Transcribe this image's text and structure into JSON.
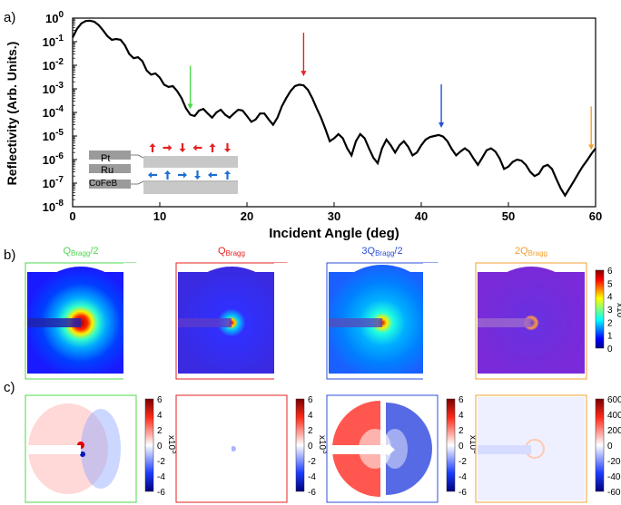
{
  "panel_labels": {
    "a": "a)",
    "b": "b)",
    "c": "c)"
  },
  "colors": {
    "green": "#4cd94c",
    "red": "#e52222",
    "blue": "#2b4fd8",
    "orange": "#f0a030",
    "curve": "#000000"
  },
  "panel_a": {
    "ylabel": "Reflectivity (Arb. Units.)",
    "xlabel": "Incident Angle (deg)",
    "arrows": [
      {
        "color_key": "green",
        "x": 13.5,
        "y": 8e-05
      },
      {
        "color_key": "red",
        "x": 26.5,
        "y": 0.002
      },
      {
        "color_key": "blue",
        "x": 42.3,
        "y": 1.3e-05
      },
      {
        "color_key": "orange",
        "x": 59.5,
        "y": 1.5e-06
      }
    ],
    "inset": {
      "layers": [
        "Pt",
        "Ru",
        "CoFeB"
      ],
      "top_arrows": [
        "up",
        "right",
        "down",
        "left",
        "up",
        "down"
      ],
      "bottom_arrows": [
        "left",
        "up",
        "right",
        "down",
        "left",
        "up"
      ]
    }
  },
  "chart_data": {
    "type": "line",
    "xlabel": "Incident Angle (deg)",
    "ylabel": "Reflectivity (Arb. Units.)",
    "xlim": [
      0,
      60
    ],
    "ylim": [
      1e-08,
      1
    ],
    "yscale": "log",
    "x_ticks": [
      "0",
      "10",
      "20",
      "30",
      "40",
      "50",
      "60"
    ],
    "y_ticks": [
      "10-8",
      "10-7",
      "10-6",
      "10-5",
      "10-4",
      "10-3",
      "10-2",
      "10-1",
      "100"
    ],
    "x": [
      0,
      0.5,
      1,
      1.5,
      2,
      2.5,
      3,
      3.5,
      4,
      4.5,
      5,
      5.5,
      6,
      6.5,
      7,
      7.5,
      8,
      8.5,
      9,
      9.5,
      10,
      10.5,
      11,
      11.5,
      12,
      12.5,
      13,
      13.5,
      14,
      14.5,
      15,
      15.5,
      16,
      16.5,
      17,
      17.5,
      18,
      18.5,
      19,
      19.5,
      20,
      20.5,
      21,
      21.5,
      22,
      22.5,
      23,
      23.5,
      24,
      24.5,
      25,
      25.5,
      26,
      26.5,
      27,
      27.5,
      28,
      28.5,
      29,
      29.5,
      30,
      30.5,
      31,
      31.5,
      32,
      32.5,
      33,
      33.5,
      34,
      34.5,
      35,
      35.5,
      36,
      36.5,
      37,
      37.5,
      38,
      38.5,
      39,
      39.5,
      40,
      40.5,
      41,
      41.5,
      42,
      42.5,
      43,
      43.5,
      44,
      44.5,
      45,
      45.5,
      46,
      46.5,
      47,
      47.5,
      48,
      48.5,
      49,
      49.5,
      50,
      50.5,
      51,
      51.5,
      52,
      52.5,
      53,
      53.5,
      54,
      54.5,
      55,
      55.5,
      56,
      56.5,
      57,
      57.5,
      58,
      58.5,
      59,
      59.5,
      60
    ],
    "y": [
      0.15,
      0.35,
      0.6,
      0.75,
      0.78,
      0.7,
      0.5,
      0.3,
      0.17,
      0.12,
      0.13,
      0.12,
      0.07,
      0.03,
      0.02,
      0.022,
      0.015,
      0.006,
      0.004,
      0.0045,
      0.003,
      0.0015,
      0.0012,
      0.0013,
      0.0008,
      0.0004,
      0.00015,
      8e-05,
      7e-05,
      0.00012,
      0.00014,
      9e-05,
      6e-05,
      0.0001,
      0.00013,
      8e-05,
      6e-05,
      9e-05,
      0.00013,
      0.00012,
      7e-05,
      4e-05,
      5e-05,
      9e-05,
      9e-05,
      5e-05,
      3e-05,
      6e-05,
      0.00018,
      0.0004,
      0.0008,
      0.0013,
      0.0015,
      0.0014,
      0.0009,
      0.0004,
      0.00015,
      6e-05,
      2e-05,
      6e-06,
      8e-06,
      1.2e-05,
      8e-06,
      3e-06,
      1.5e-06,
      6e-06,
      1.2e-05,
      8e-06,
      3e-06,
      1.2e-06,
      7e-07,
      3e-06,
      7e-06,
      4e-06,
      2e-06,
      4e-06,
      6e-06,
      3.5e-06,
      1.5e-06,
      2e-06,
      4e-06,
      7e-06,
      9e-06,
      1e-05,
      1.1e-05,
      9.5e-06,
      6e-06,
      2.8e-06,
      1.5e-06,
      2.2e-06,
      3e-06,
      2.2e-06,
      1.1e-06,
      6e-07,
      1.2e-06,
      2.5e-06,
      3e-06,
      2.2e-06,
      1.1e-06,
      4e-07,
      5e-07,
      8e-07,
      1e-06,
      9e-07,
      6e-07,
      3e-07,
      2e-07,
      2.5e-07,
      5e-07,
      6e-07,
      4e-07,
      1.5e-07,
      6e-08,
      3e-08,
      6e-08,
      1.2e-07,
      2.5e-07,
      5e-07,
      9e-07,
      1.7e-06,
      3e-06
    ]
  },
  "panel_b": {
    "maps": [
      {
        "title_prefix": "Q",
        "title_sub": "Bragg",
        "title_suffix": "/2",
        "color_key": "green",
        "exponent": "4",
        "ticks": [
          "6",
          "5",
          "4",
          "3",
          "2",
          "1",
          "0"
        ]
      },
      {
        "title_prefix": "Q",
        "title_sub": "Bragg",
        "title_suffix": "",
        "color_key": "red",
        "exponent": "4",
        "ticks": [
          "6",
          "5",
          "4",
          "3",
          "2",
          "1",
          "0"
        ]
      },
      {
        "title_prefix": "3Q",
        "title_sub": "Bragg",
        "title_suffix": "/2",
        "color_key": "blue",
        "exponent": "4",
        "ticks": [
          "6",
          "5",
          "4",
          "3",
          "2",
          "1",
          "0"
        ]
      },
      {
        "title_prefix": "2Q",
        "title_sub": "Bragg",
        "title_suffix": "",
        "color_key": "orange",
        "exponent": "3",
        "ticks": [
          "6",
          "5",
          "4",
          "3",
          "2",
          "1",
          "0"
        ]
      }
    ]
  },
  "panel_c": {
    "maps": [
      {
        "color_key": "green",
        "exponent": "3",
        "ticks": [
          "6",
          "4",
          "2",
          "0",
          "-2",
          "-4",
          "-6"
        ]
      },
      {
        "color_key": "red",
        "exponent": "3",
        "ticks": [
          "6",
          "4",
          "2",
          "0",
          "-2",
          "-4",
          "-6"
        ]
      },
      {
        "color_key": "blue",
        "exponent": "3",
        "ticks": [
          "6",
          "4",
          "2",
          "0",
          "-2",
          "-4",
          "-6"
        ]
      },
      {
        "color_key": "orange",
        "exponent": "",
        "ticks": [
          "600",
          "400",
          "200",
          "0",
          "-200",
          "-400",
          "-600"
        ]
      }
    ]
  }
}
